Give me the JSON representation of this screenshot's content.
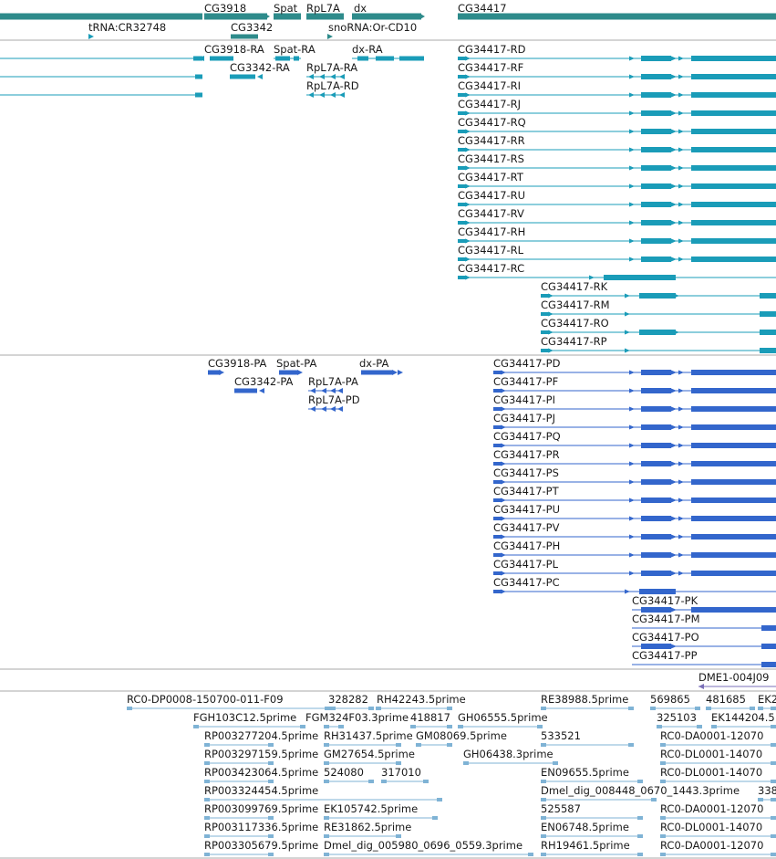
{
  "colors": {
    "gene": "#2e8b8b",
    "transcript": "#1a9cb8",
    "protein": "#3366cc",
    "est": "#7fb3d5",
    "est_alt": "#7a6fb8",
    "divider": "#aaaaaa",
    "text": "#1a1a1a"
  },
  "gene_labels": [
    "CG3918",
    "Spat",
    "RpL7A",
    "dx",
    "CG34417",
    "tRNA:CR32748",
    "CG3342",
    "snoRNA:Or-CD10"
  ],
  "transcript_labels": {
    "left": [
      "CG3918-RA",
      "Spat-RA",
      "dx-RA",
      "CG3342-RA",
      "RpL7A-RA",
      "RpL7A-RD"
    ],
    "cg34417": [
      "CG34417-RD",
      "CG34417-RF",
      "CG34417-RI",
      "CG34417-RJ",
      "CG34417-RQ",
      "CG34417-RR",
      "CG34417-RS",
      "CG34417-RT",
      "CG34417-RU",
      "CG34417-RV",
      "CG34417-RH",
      "CG34417-RL",
      "CG34417-RC",
      "CG34417-RK",
      "CG34417-RM",
      "CG34417-RO",
      "CG34417-RP"
    ]
  },
  "protein_labels": {
    "left": [
      "CG3918-PA",
      "Spat-PA",
      "dx-PA",
      "CG3342-PA",
      "RpL7A-PA",
      "RpL7A-PD"
    ],
    "cg34417": [
      "CG34417-PD",
      "CG34417-PF",
      "CG34417-PI",
      "CG34417-PJ",
      "CG34417-PQ",
      "CG34417-PR",
      "CG34417-PS",
      "CG34417-PT",
      "CG34417-PU",
      "CG34417-PV",
      "CG34417-PH",
      "CG34417-PL",
      "CG34417-PC",
      "CG34417-PK",
      "CG34417-PM",
      "CG34417-PO",
      "CG34417-PP"
    ]
  },
  "repeat_label": "DME1-004J09",
  "est_labels": [
    "RC0-DP0008-150700-011-F09",
    "328282",
    "RH42243.5prime",
    "RE38988.5prime",
    "569865",
    "481685",
    "EK2",
    "FGH103C12.5prime",
    "FGM324F03.3prime",
    "418817",
    "GH06555.5prime",
    "325103",
    "EK144204.5",
    "RP003277204.5prime",
    "RH31437.5prime",
    "GM08069.5prime",
    "533521",
    "RC0-DA0001-12070",
    "RP003297159.5prime",
    "GM27654.5prime",
    "GH06438.3prime",
    "RC0-DL0001-14070",
    "RP003423064.5prime",
    "524080",
    "317010",
    "EN09655.5prime",
    "RC0-DL0001-14070",
    "RP003324454.5prime",
    "Dmel_dig_008448_0670_1443.3prime",
    "338",
    "RP003099769.5prime",
    "EK105742.5prime",
    "525587",
    "RC0-DA0001-12070",
    "RP003117336.5prime",
    "RE31862.5prime",
    "EN06748.5prime",
    "RC0-DL0001-14070",
    "RP003305679.5prime",
    "Dmel_dig_005980_0696_0559.3prime",
    "RH19461.5prime",
    "RC0-DA0001-12070"
  ]
}
